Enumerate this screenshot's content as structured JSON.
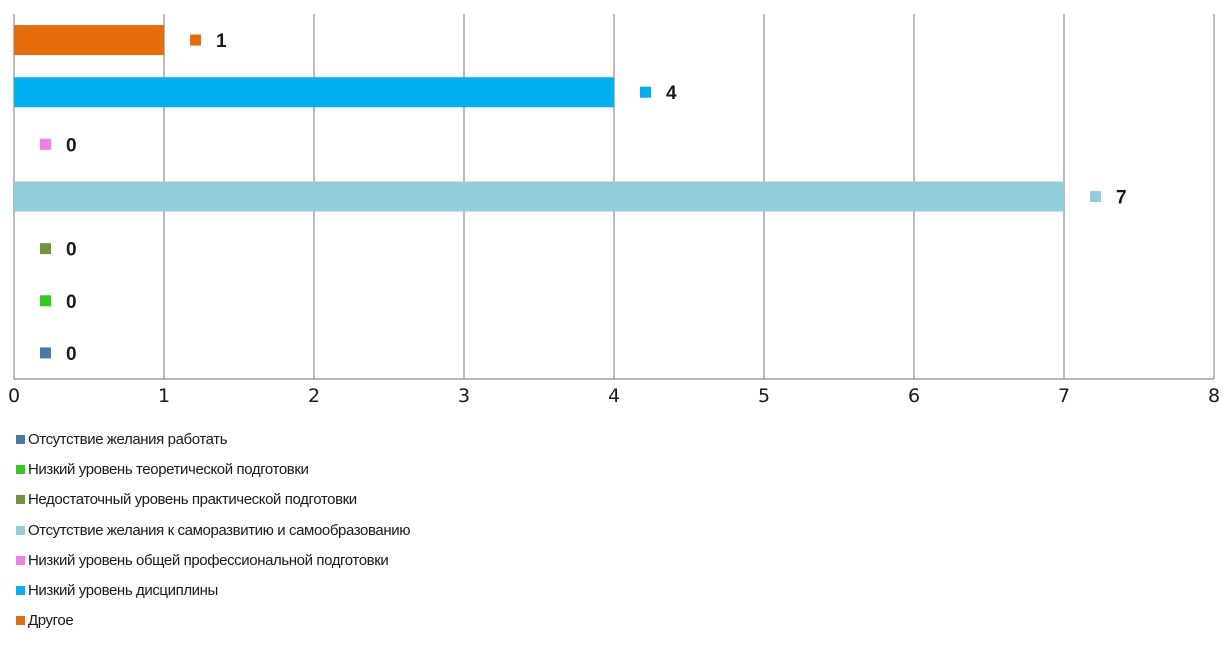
{
  "chart_data": {
    "type": "bar",
    "orientation": "horizontal",
    "xlim": [
      0,
      8
    ],
    "x_ticks": [
      "0",
      "1",
      "2",
      "3",
      "4",
      "5",
      "6",
      "7",
      "8"
    ],
    "grid": "vertical",
    "legend_position": "bottom",
    "series": [
      {
        "name": "Отсутствие желания работать",
        "value": 0,
        "label": "0",
        "color": "#4a76a8"
      },
      {
        "name": "Низкий уровень теоретической подготовки",
        "value": 0,
        "label": "0",
        "color": "#2ecc1f"
      },
      {
        "name": "Недостаточный уровень практической подготовки",
        "value": 0,
        "label": "0",
        "color": "#72943c"
      },
      {
        "name": "Отсутствие желания к саморазвитию и самообразованию",
        "value": 7,
        "label": "7",
        "color": "#92cddc"
      },
      {
        "name": "Низкий уровень общей профессиональной подготовки",
        "value": 0,
        "label": "0",
        "color": "#f27ee6"
      },
      {
        "name": "Низкий уровень дисциплины",
        "value": 4,
        "label": "4",
        "color": "#00b0f0"
      },
      {
        "name": "Другое",
        "value": 1,
        "label": "1",
        "color": "#e46c0a"
      }
    ]
  }
}
